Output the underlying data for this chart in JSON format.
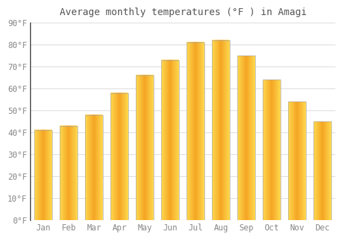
{
  "title": "Average monthly temperatures (°F ) in Amagi",
  "months": [
    "Jan",
    "Feb",
    "Mar",
    "Apr",
    "May",
    "Jun",
    "Jul",
    "Aug",
    "Sep",
    "Oct",
    "Nov",
    "Dec"
  ],
  "values": [
    41,
    43,
    48,
    58,
    66,
    73,
    81,
    82,
    75,
    64,
    54,
    45
  ],
  "bar_color_main": "#F5A623",
  "bar_color_light": "#FFD966",
  "bar_edge_color": "#888888",
  "background_color": "#FFFFFF",
  "grid_color": "#DDDDDD",
  "title_fontsize": 10,
  "tick_fontsize": 8.5,
  "tick_color": "#888888",
  "title_color": "#555555",
  "ylim": [
    0,
    90
  ],
  "yticks": [
    0,
    10,
    20,
    30,
    40,
    50,
    60,
    70,
    80,
    90
  ],
  "bar_width": 0.7,
  "left_spine_color": "#333333"
}
